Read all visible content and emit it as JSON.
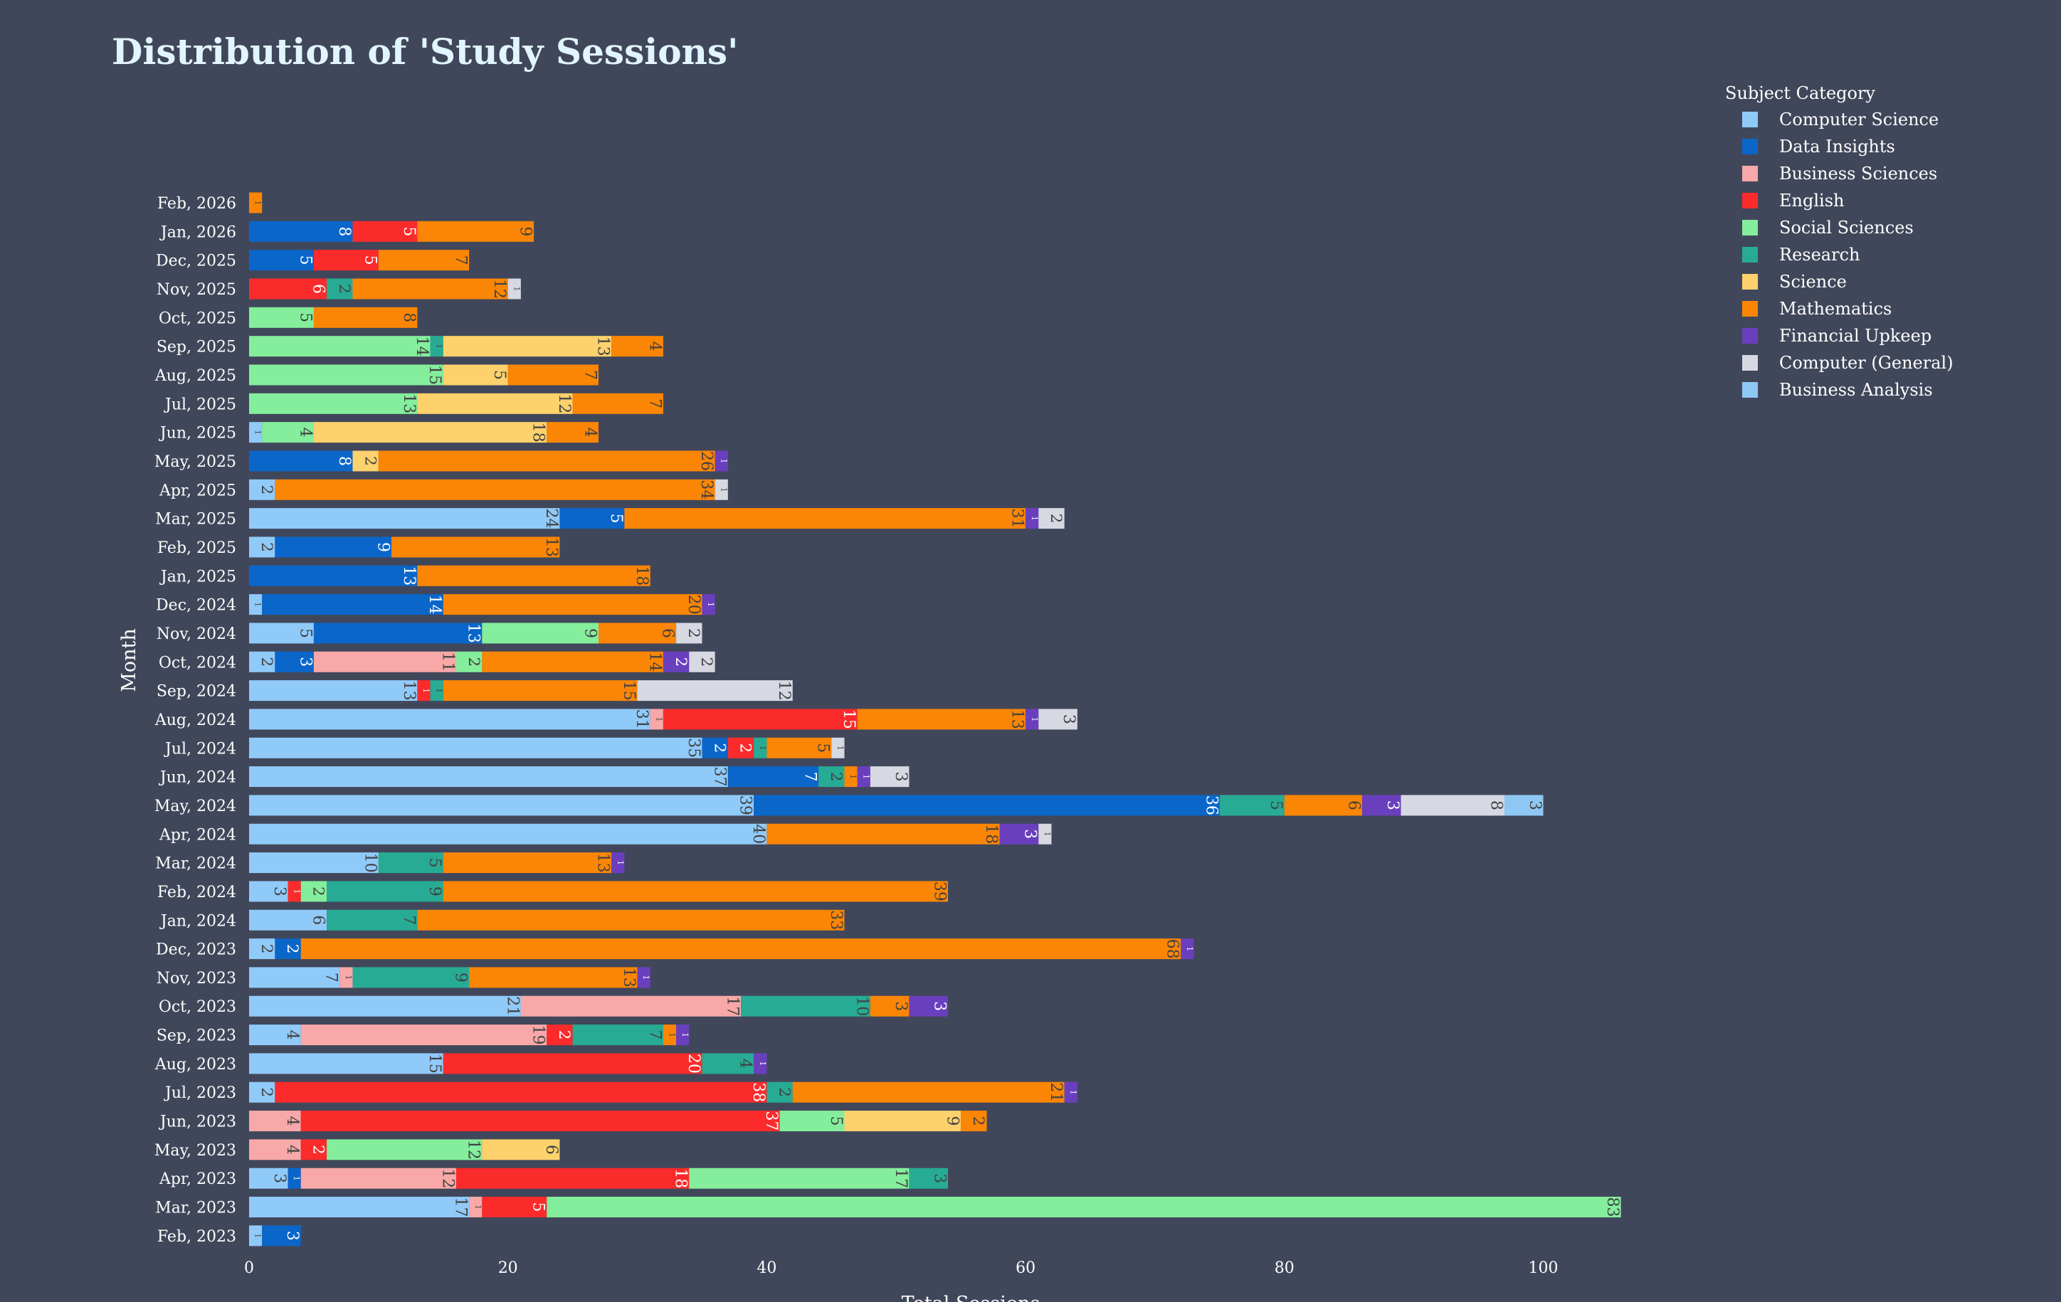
{
  "chart_data": {
    "type": "bar",
    "orientation": "horizontal",
    "barmode": "stack",
    "title": "Distribution of 'Study Sessions'",
    "xlabel": "Total Sessions",
    "ylabel": "Month",
    "xlim": [
      0,
      106
    ],
    "xticks": [
      0,
      20,
      40,
      60,
      80,
      100
    ],
    "grid": false,
    "legend_title": "Subject Category",
    "legend_position": "top-right",
    "categories": [
      "Feb, 2026",
      "Jan, 2026",
      "Dec, 2025",
      "Nov, 2025",
      "Oct, 2025",
      "Sep, 2025",
      "Aug, 2025",
      "Jul, 2025",
      "Jun, 2025",
      "May, 2025",
      "Apr, 2025",
      "Mar, 2025",
      "Feb, 2025",
      "Jan, 2025",
      "Dec, 2024",
      "Nov, 2024",
      "Oct, 2024",
      "Sep, 2024",
      "Aug, 2024",
      "Jul, 2024",
      "Jun, 2024",
      "May, 2024",
      "Apr, 2024",
      "Mar, 2024",
      "Feb, 2024",
      "Jan, 2024",
      "Dec, 2023",
      "Nov, 2023",
      "Oct, 2023",
      "Sep, 2023",
      "Aug, 2023",
      "Jul, 2023",
      "Jun, 2023",
      "May, 2023",
      "Apr, 2023",
      "Mar, 2023",
      "Feb, 2023"
    ],
    "series": [
      {
        "name": "Computer Science",
        "color": "#90caf9",
        "label_color": "#424242",
        "values": [
          0,
          0,
          0,
          0,
          0,
          0,
          0,
          0,
          1,
          0,
          2,
          24,
          2,
          0,
          1,
          5,
          2,
          13,
          31,
          35,
          37,
          39,
          40,
          10,
          3,
          6,
          2,
          7,
          21,
          4,
          15,
          2,
          0,
          0,
          3,
          17,
          1
        ]
      },
      {
        "name": "Data Insights",
        "color": "#0b66c9",
        "label_color": "#ffffff",
        "values": [
          0,
          8,
          5,
          0,
          0,
          0,
          0,
          0,
          0,
          8,
          0,
          5,
          9,
          13,
          14,
          13,
          3,
          0,
          0,
          2,
          7,
          36,
          0,
          0,
          0,
          0,
          2,
          0,
          0,
          0,
          0,
          0,
          0,
          0,
          1,
          0,
          3
        ]
      },
      {
        "name": "Business Sciences",
        "color": "#f8a8a8",
        "label_color": "#424242",
        "values": [
          0,
          0,
          0,
          0,
          0,
          0,
          0,
          0,
          0,
          0,
          0,
          0,
          0,
          0,
          0,
          0,
          11,
          0,
          1,
          0,
          0,
          0,
          0,
          0,
          0,
          0,
          0,
          1,
          17,
          19,
          0,
          0,
          4,
          4,
          12,
          1,
          0
        ]
      },
      {
        "name": "English",
        "color": "#fb2b2b",
        "label_color": "#ffffff",
        "values": [
          0,
          5,
          5,
          6,
          0,
          0,
          0,
          0,
          0,
          0,
          0,
          0,
          0,
          0,
          0,
          0,
          0,
          1,
          15,
          2,
          0,
          0,
          0,
          0,
          1,
          0,
          0,
          0,
          0,
          2,
          20,
          38,
          37,
          2,
          18,
          5,
          0
        ]
      },
      {
        "name": "Social Sciences",
        "color": "#84ee9c",
        "label_color": "#424242",
        "values": [
          0,
          0,
          0,
          0,
          5,
          14,
          15,
          13,
          4,
          0,
          0,
          0,
          0,
          0,
          0,
          9,
          2,
          0,
          0,
          0,
          0,
          0,
          0,
          0,
          2,
          0,
          0,
          0,
          0,
          0,
          0,
          0,
          5,
          12,
          17,
          83,
          0
        ]
      },
      {
        "name": "Research",
        "color": "#27ab94",
        "label_color": "#424242",
        "values": [
          0,
          0,
          0,
          2,
          0,
          1,
          0,
          0,
          0,
          0,
          0,
          0,
          0,
          0,
          0,
          0,
          0,
          1,
          0,
          1,
          2,
          5,
          0,
          5,
          9,
          7,
          0,
          9,
          10,
          7,
          4,
          2,
          0,
          0,
          3,
          0,
          0
        ]
      },
      {
        "name": "Science",
        "color": "#fdd26c",
        "label_color": "#424242",
        "values": [
          0,
          0,
          0,
          0,
          0,
          13,
          5,
          12,
          18,
          2,
          0,
          0,
          0,
          0,
          0,
          0,
          0,
          0,
          0,
          0,
          0,
          0,
          0,
          0,
          0,
          0,
          0,
          0,
          0,
          0,
          0,
          0,
          9,
          6,
          0,
          0,
          0
        ]
      },
      {
        "name": "Mathematics",
        "color": "#fb8605",
        "label_color": "#424242",
        "values": [
          1,
          9,
          7,
          12,
          8,
          4,
          7,
          7,
          4,
          26,
          34,
          31,
          13,
          18,
          20,
          6,
          14,
          15,
          13,
          5,
          1,
          6,
          18,
          13,
          39,
          33,
          68,
          13,
          3,
          1,
          0,
          21,
          2,
          0,
          0,
          0,
          0
        ]
      },
      {
        "name": "Financial Upkeep",
        "color": "#6a3fbe",
        "label_color": "#ffffff",
        "values": [
          0,
          0,
          0,
          0,
          0,
          0,
          0,
          0,
          0,
          1,
          0,
          1,
          0,
          0,
          1,
          0,
          2,
          0,
          1,
          0,
          1,
          3,
          3,
          1,
          0,
          0,
          1,
          1,
          3,
          1,
          1,
          1,
          0,
          0,
          0,
          0,
          0
        ]
      },
      {
        "name": "Computer (General)",
        "color": "#d6d9e2",
        "label_color": "#424242",
        "values": [
          0,
          0,
          0,
          1,
          0,
          0,
          0,
          0,
          0,
          0,
          1,
          2,
          0,
          0,
          0,
          2,
          2,
          12,
          3,
          1,
          3,
          8,
          1,
          0,
          0,
          0,
          0,
          0,
          0,
          0,
          0,
          0,
          0,
          0,
          0,
          0,
          0
        ]
      },
      {
        "name": "Business Analysis",
        "color": "#8fc7f4",
        "label_color": "#424242",
        "values": [
          0,
          0,
          0,
          0,
          0,
          0,
          0,
          0,
          0,
          0,
          0,
          0,
          0,
          0,
          0,
          0,
          0,
          0,
          0,
          0,
          0,
          3,
          0,
          0,
          0,
          0,
          0,
          0,
          0,
          0,
          0,
          0,
          0,
          0,
          0,
          0,
          0
        ]
      }
    ]
  }
}
